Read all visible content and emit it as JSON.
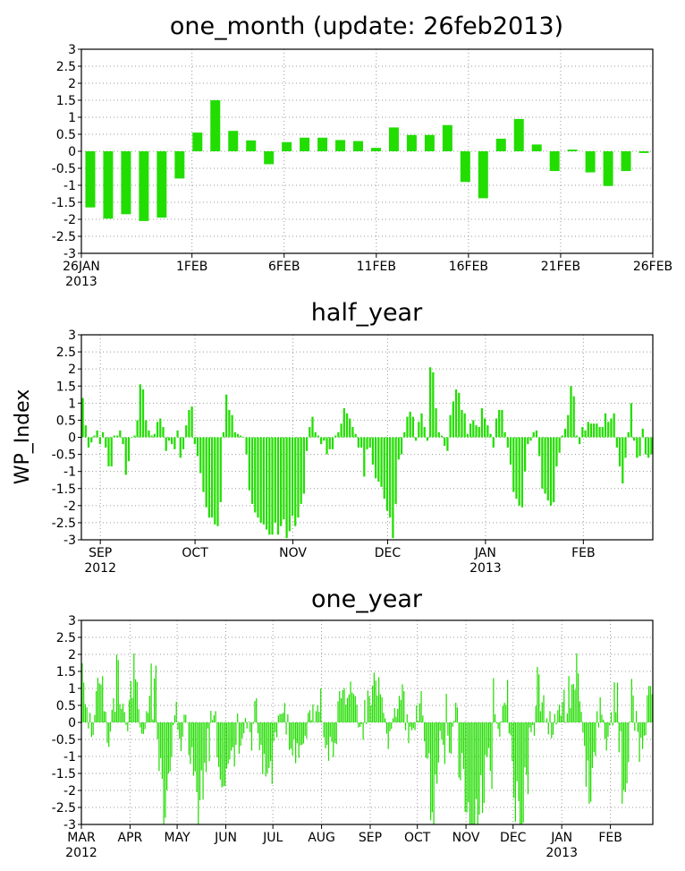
{
  "colors": {
    "bar": "#22dd00",
    "frame": "#000000",
    "grid": "#9a9a9a"
  },
  "y_axis_label": "WP_Index",
  "chart_data": [
    {
      "type": "bar",
      "title": "one_month (update: 26feb2013)",
      "ylim": [
        -3,
        3
      ],
      "yticks": [
        "-3",
        "-2.5",
        "-2",
        "-1.5",
        "-1",
        "-0.5",
        "0",
        "0.5",
        "1",
        "1.5",
        "2",
        "2.5",
        "3"
      ],
      "grid": true,
      "x_range_days": [
        0,
        31
      ],
      "xticks": [
        {
          "day": 0,
          "label": "26JAN",
          "year": "2013"
        },
        {
          "day": 6,
          "label": "1FEB"
        },
        {
          "day": 11,
          "label": "6FEB"
        },
        {
          "day": 16,
          "label": "11FEB"
        },
        {
          "day": 21,
          "label": "16FEB"
        },
        {
          "day": 26,
          "label": "21FEB"
        },
        {
          "day": 31,
          "label": "26FEB"
        }
      ],
      "values": [
        -1.65,
        -1.98,
        -1.85,
        -2.05,
        -1.95,
        -0.8,
        0.55,
        1.5,
        0.6,
        0.32,
        -0.38,
        0.27,
        0.4,
        0.4,
        0.33,
        0.3,
        0.1,
        0.7,
        0.48,
        0.48,
        0.77,
        -0.9,
        -1.38,
        0.37,
        0.95,
        0.2,
        -0.58,
        0.05,
        -0.62,
        -1.02,
        -0.58,
        -0.05
      ]
    },
    {
      "type": "bar",
      "title": "half_year",
      "ylim": [
        -3,
        3
      ],
      "yticks": [
        "-3",
        "-2.5",
        "-2",
        "-1.5",
        "-1",
        "-0.5",
        "0",
        "0.5",
        "1",
        "1.5",
        "2",
        "2.5",
        "3"
      ],
      "grid": true,
      "x_range_days": [
        0,
        181
      ],
      "xticks": [
        {
          "day": 6,
          "label": "SEP",
          "year": "2012"
        },
        {
          "day": 36,
          "label": "OCT"
        },
        {
          "day": 67,
          "label": "NOV"
        },
        {
          "day": 97,
          "label": "DEC"
        },
        {
          "day": 128,
          "label": "JAN",
          "year": "2013"
        },
        {
          "day": 159,
          "label": "FEB"
        }
      ],
      "values": [
        1.15,
        0.35,
        -0.3,
        -0.15,
        0.05,
        0.2,
        -0.2,
        0.15,
        -0.3,
        -0.85,
        -0.85,
        0.05,
        0.05,
        0.2,
        -0.2,
        -1.1,
        -0.7,
        0,
        0.05,
        0.5,
        1.55,
        1.4,
        0.5,
        0.2,
        0.05,
        0.1,
        0.45,
        0.55,
        0.3,
        -0.4,
        -0.1,
        -0.2,
        -0.35,
        0.2,
        -0.6,
        -0.35,
        0.35,
        0.8,
        0.9,
        -0.2,
        -0.55,
        -1.05,
        -1.6,
        -2.05,
        -2.35,
        -2.35,
        -2.55,
        -2.6,
        -1.9,
        0.15,
        1.25,
        0.8,
        0.65,
        0.15,
        0.1,
        0.05,
        0,
        -0.5,
        -1.55,
        -1.95,
        -2.2,
        -2.35,
        -2.5,
        -2.55,
        -2.7,
        -2.85,
        -2.85,
        -2.5,
        -2.85,
        -2.6,
        -2.4,
        -2.95,
        -2.75,
        -2.3,
        -2.6,
        -2.35,
        -1.95,
        -1.65,
        -0.4,
        0.3,
        0.6,
        0.15,
        0.05,
        -0.2,
        -0.1,
        -0.5,
        -0.35,
        -0.35,
        0.05,
        0.15,
        0.4,
        0.85,
        0.7,
        0.55,
        0.3,
        0.1,
        -0.3,
        -0.3,
        -1.15,
        -0.35,
        -0.3,
        -0.8,
        -1.2,
        -1.3,
        -1.45,
        -1.8,
        -2.15,
        -2.35,
        -2.95,
        -1.95,
        -0.65,
        -0.5,
        0.15,
        0.6,
        0.75,
        0.6,
        -0.1,
        0.45,
        0.7,
        0.3,
        -0.1,
        2.05,
        1.9,
        0.85,
        0.15,
        0.05,
        -0.25,
        -0.4,
        0.65,
        1.05,
        1.4,
        1.3,
        0.8,
        0.7,
        0.1,
        0.4,
        0.5,
        0.35,
        0.3,
        0.85,
        0.55,
        0.35,
        0.1,
        -0.3,
        0.55,
        0.8,
        0.8,
        0.15,
        -0.3,
        -0.8,
        -1.6,
        -1.8,
        -2.0,
        -2.05,
        -1.0,
        -0.2,
        -0.1,
        0.15,
        0.2,
        -0.55,
        -1.5,
        -1.65,
        -1.85,
        -2.0,
        -1.9,
        -0.85,
        -0.45,
        0.05,
        0.25,
        0.65,
        1.5,
        1.2,
        0.05,
        -0.2,
        0.3,
        0.2,
        0.45,
        0.4,
        0.4,
        0.4,
        0.3,
        0.3,
        0.7,
        0.45,
        0.55,
        0.7,
        -0.3,
        -0.85,
        -1.35,
        -0.6,
        0.15,
        1.0,
        -0.1,
        -0.6,
        -0.55,
        0.25,
        -0.5,
        -0.6,
        -0.5
      ]
    },
    {
      "type": "bar",
      "title": "one_year",
      "ylim": [
        -3,
        3
      ],
      "yticks": [
        "-3",
        "-2.5",
        "-2",
        "-1.5",
        "-1",
        "-0.5",
        "0",
        "0.5",
        "1",
        "1.5",
        "2",
        "2.5",
        "3"
      ],
      "grid": true,
      "x_range_days": [
        0,
        364
      ],
      "xticks": [
        {
          "day": 0,
          "label": "MAR",
          "year": "2012"
        },
        {
          "day": 31,
          "label": "APR"
        },
        {
          "day": 61,
          "label": "MAY"
        },
        {
          "day": 92,
          "label": "JUN"
        },
        {
          "day": 122,
          "label": "JUL"
        },
        {
          "day": 153,
          "label": "AUG"
        },
        {
          "day": 184,
          "label": "SEP"
        },
        {
          "day": 214,
          "label": "OCT"
        },
        {
          "day": 245,
          "label": "NOV"
        },
        {
          "day": 275,
          "label": "DEC"
        },
        {
          "day": 306,
          "label": "JAN",
          "year": "2013"
        },
        {
          "day": 337,
          "label": "FEB"
        }
      ],
      "segments": [
        {
          "start": 0,
          "end": 14,
          "lo": -0.05,
          "hi": 1.6,
          "amp": 0.5
        },
        {
          "start": 14,
          "end": 22,
          "lo": -0.4,
          "hi": 0.6,
          "amp": 0.4
        },
        {
          "start": 22,
          "end": 36,
          "lo": 0.0,
          "hi": 1.7,
          "amp": 0.6
        },
        {
          "start": 36,
          "end": 44,
          "lo": -0.5,
          "hi": 0.6,
          "amp": 0.5
        },
        {
          "start": 44,
          "end": 48,
          "lo": 0.4,
          "hi": 1.75,
          "amp": 0.5
        },
        {
          "start": 48,
          "end": 60,
          "lo": -2.9,
          "hi": -0.3,
          "amp": 0.8
        },
        {
          "start": 60,
          "end": 68,
          "lo": -0.8,
          "hi": 0.3,
          "amp": 0.5
        },
        {
          "start": 68,
          "end": 84,
          "lo": -2.5,
          "hi": -0.4,
          "amp": 0.9
        },
        {
          "start": 84,
          "end": 104,
          "lo": -1.7,
          "hi": -0.1,
          "amp": 0.7
        },
        {
          "start": 104,
          "end": 112,
          "lo": -0.7,
          "hi": 0.6,
          "amp": 0.5
        },
        {
          "start": 112,
          "end": 128,
          "lo": -1.7,
          "hi": -0.2,
          "amp": 0.6
        },
        {
          "start": 128,
          "end": 150,
          "lo": -0.9,
          "hi": 0.3,
          "amp": 0.5
        },
        {
          "start": 150,
          "end": 170,
          "lo": -0.6,
          "hi": 0.8,
          "amp": 0.6
        },
        {
          "start": 170,
          "end": 190,
          "lo": 0.0,
          "hi": 1.3,
          "amp": 0.6
        },
        {
          "start": 190,
          "end": 204,
          "lo": -0.6,
          "hi": 0.9,
          "amp": 0.5
        },
        {
          "start": 204,
          "end": 218,
          "lo": -0.5,
          "hi": 0.7,
          "amp": 0.5
        },
        {
          "start": 218,
          "end": 232,
          "lo": -2.5,
          "hi": -0.2,
          "amp": 1.0
        },
        {
          "start": 232,
          "end": 240,
          "lo": -0.8,
          "hi": 0.4,
          "amp": 0.5
        },
        {
          "start": 240,
          "end": 262,
          "lo": -2.85,
          "hi": -0.9,
          "amp": 1.0
        },
        {
          "start": 262,
          "end": 272,
          "lo": -0.8,
          "hi": 0.8,
          "amp": 0.6
        },
        {
          "start": 272,
          "end": 290,
          "lo": -2.8,
          "hi": -0.4,
          "amp": 1.0
        },
        {
          "start": 290,
          "end": 318,
          "lo": -0.3,
          "hi": 1.4,
          "amp": 0.8
        },
        {
          "start": 318,
          "end": 330,
          "lo": -1.9,
          "hi": -0.4,
          "amp": 0.8
        },
        {
          "start": 330,
          "end": 342,
          "lo": -0.5,
          "hi": 0.9,
          "amp": 0.6
        },
        {
          "start": 342,
          "end": 350,
          "lo": -2.0,
          "hi": -0.4,
          "amp": 0.8
        },
        {
          "start": 350,
          "end": 364,
          "lo": -0.8,
          "hi": 0.9,
          "amp": 0.6
        }
      ]
    }
  ]
}
